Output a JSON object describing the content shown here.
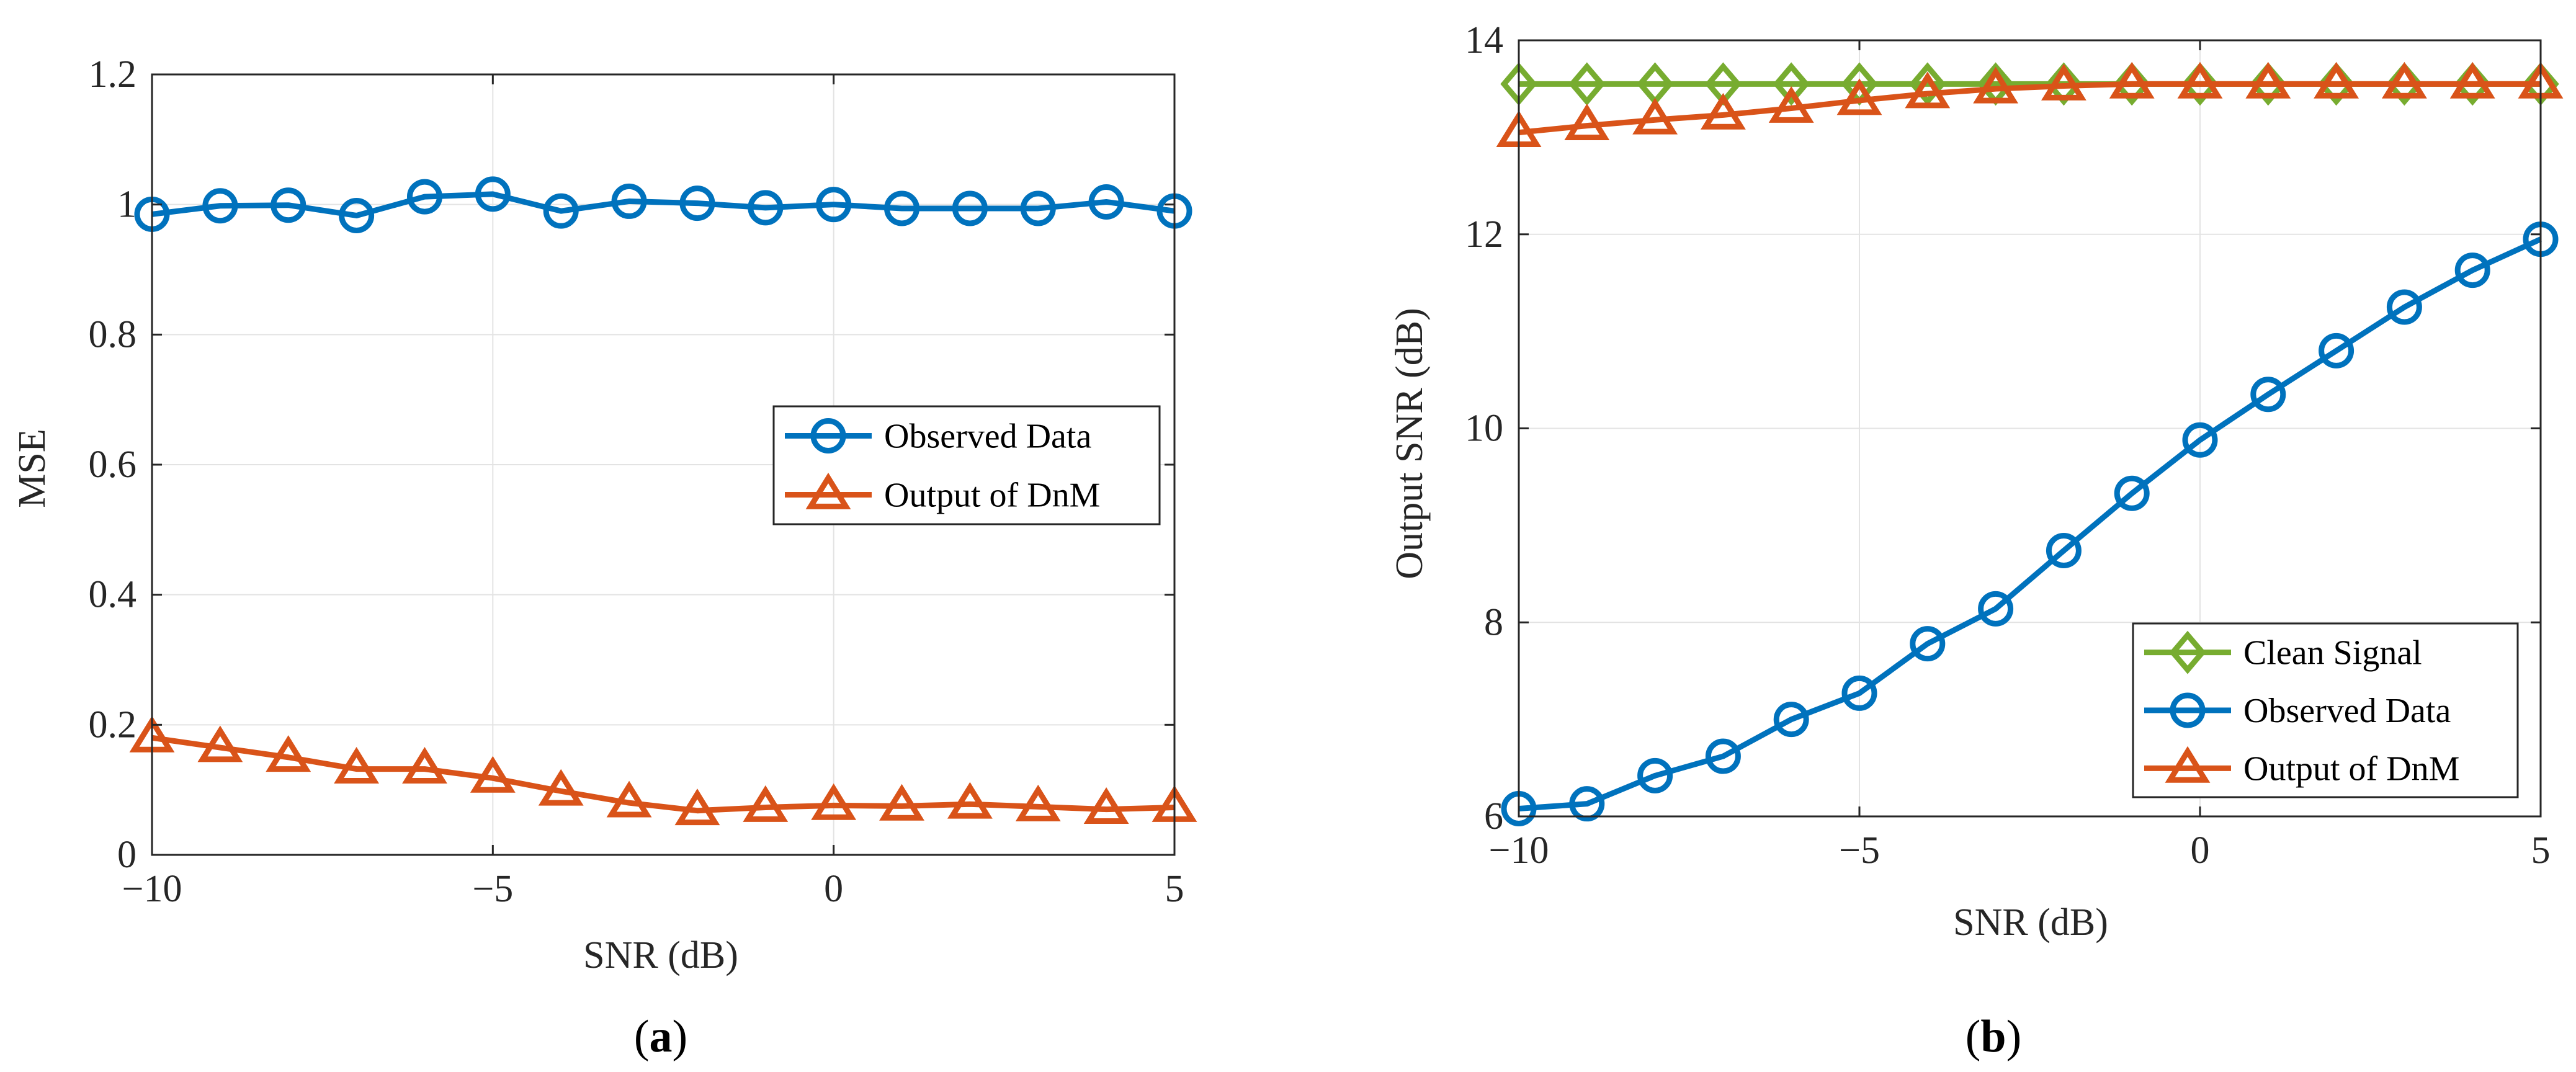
{
  "chart_data": [
    {
      "id": "a",
      "type": "line",
      "caption": "a",
      "title": "",
      "xlabel": "SNR (dB)",
      "ylabel": "MSE",
      "xlim": [
        -10,
        5
      ],
      "ylim": [
        0,
        1.2
      ],
      "xticks": [
        -10,
        -5,
        0,
        5
      ],
      "xtick_labels": [
        "−10",
        "−5",
        "0",
        "5"
      ],
      "yticks": [
        0,
        0.2,
        0.4,
        0.6,
        0.8,
        1,
        1.2
      ],
      "ytick_labels": [
        "0",
        "0.2",
        "0.4",
        "0.6",
        "0.8",
        "1",
        "1.2"
      ],
      "grid": true,
      "legend_position": "center-right",
      "x": [
        -10,
        -9,
        -8,
        -7,
        -6,
        -5,
        -4,
        -3,
        -2,
        -1,
        0,
        1,
        2,
        3,
        4,
        5
      ],
      "series": [
        {
          "name": "Observed Data",
          "marker": "circle",
          "color": "#0072BD",
          "values": [
            0.985,
            0.998,
            0.999,
            0.983,
            1.012,
            1.016,
            0.99,
            1.005,
            1.002,
            0.995,
            1.0,
            0.994,
            0.994,
            0.994,
            1.004,
            0.99
          ]
        },
        {
          "name": "Output of DnM",
          "marker": "triangle",
          "color": "#D95319",
          "values": [
            0.18,
            0.165,
            0.15,
            0.132,
            0.132,
            0.118,
            0.098,
            0.08,
            0.068,
            0.073,
            0.076,
            0.075,
            0.078,
            0.074,
            0.07,
            0.073
          ]
        }
      ]
    },
    {
      "id": "b",
      "type": "line",
      "caption": "b",
      "title": "",
      "xlabel": "SNR (dB)",
      "ylabel": "Output SNR (dB)",
      "xlim": [
        -10,
        5
      ],
      "ylim": [
        6,
        14
      ],
      "xticks": [
        -10,
        -5,
        0,
        5
      ],
      "xtick_labels": [
        "−10",
        "−5",
        "0",
        "5"
      ],
      "yticks": [
        6,
        8,
        10,
        12,
        14
      ],
      "ytick_labels": [
        "6",
        "8",
        "10",
        "12",
        "14"
      ],
      "grid": true,
      "legend_position": "bottom-right",
      "x": [
        -10,
        -9,
        -8,
        -7,
        -6,
        -5,
        -4,
        -3,
        -2,
        -1,
        0,
        1,
        2,
        3,
        4,
        5
      ],
      "series": [
        {
          "name": "Clean Signal",
          "marker": "diamond",
          "color": "#77AC30",
          "values": [
            13.55,
            13.55,
            13.55,
            13.55,
            13.55,
            13.55,
            13.55,
            13.55,
            13.55,
            13.55,
            13.55,
            13.55,
            13.55,
            13.55,
            13.55,
            13.55
          ]
        },
        {
          "name": "Observed Data",
          "marker": "circle",
          "color": "#0072BD",
          "values": [
            6.08,
            6.13,
            6.42,
            6.62,
            7.0,
            7.27,
            7.78,
            8.14,
            8.74,
            9.33,
            9.88,
            10.35,
            10.8,
            11.25,
            11.63,
            11.95
          ]
        },
        {
          "name": "Output of DnM",
          "marker": "triangle",
          "color": "#D95319",
          "values": [
            13.05,
            13.12,
            13.18,
            13.23,
            13.3,
            13.38,
            13.45,
            13.5,
            13.53,
            13.55,
            13.55,
            13.55,
            13.55,
            13.55,
            13.55,
            13.55
          ]
        }
      ]
    }
  ]
}
